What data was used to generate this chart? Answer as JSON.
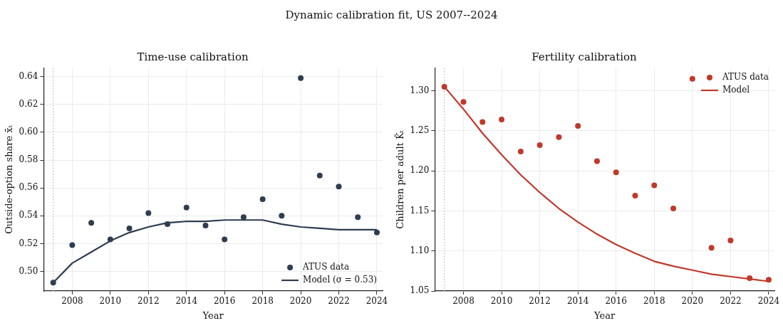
{
  "chart_data": [
    {
      "type": "line",
      "title": "Time-use calibration",
      "xlabel": "Year",
      "ylabel": "Outside-option share x̄ₜ",
      "annotations": [
        "Dynamic calibration fit, US 2007--2024"
      ],
      "x": [
        2007,
        2008,
        2009,
        2010,
        2011,
        2012,
        2013,
        2014,
        2015,
        2016,
        2017,
        2018,
        2019,
        2020,
        2021,
        2022,
        2023,
        2024
      ],
      "series": [
        {
          "name": "ATUS data",
          "type": "scatter",
          "marker": "circle",
          "color": "#2e3d4f",
          "values": [
            0.492,
            0.519,
            0.535,
            0.523,
            0.531,
            0.542,
            0.534,
            0.546,
            0.533,
            0.523,
            0.539,
            0.552,
            0.54,
            0.639,
            0.569,
            0.561,
            0.539,
            0.528
          ]
        },
        {
          "name": "Model (σ = 0.53)",
          "type": "line",
          "marker": "none",
          "color": "#2e3d4f",
          "values": [
            0.492,
            0.506,
            0.514,
            0.522,
            0.528,
            0.532,
            0.535,
            0.536,
            0.536,
            0.537,
            0.537,
            0.537,
            0.534,
            0.532,
            0.531,
            0.53,
            0.53,
            0.53
          ]
        }
      ],
      "xlim": [
        2006.5,
        2024.3
      ],
      "ylim": [
        0.486,
        0.646
      ],
      "xticks": [
        2008,
        2010,
        2012,
        2014,
        2016,
        2018,
        2020,
        2022,
        2024
      ],
      "yticks": [
        {
          "value": 0.5,
          "label": "0.50"
        },
        {
          "value": 0.52,
          "label": "0.52"
        },
        {
          "value": 0.54,
          "label": "0.54"
        },
        {
          "value": 0.56,
          "label": "0.56"
        },
        {
          "value": 0.58,
          "label": "0.58"
        },
        {
          "value": 0.6,
          "label": "0.60"
        },
        {
          "value": 0.62,
          "label": "0.62"
        },
        {
          "value": 0.64,
          "label": "0.64"
        }
      ],
      "ref_lines": [
        {
          "axis": "x",
          "value": 2007,
          "color": "#aaaaaa",
          "line_style": "dotted"
        }
      ],
      "grid": true,
      "legend": "bottom right"
    },
    {
      "type": "line",
      "title": "Fertility calibration",
      "xlabel": "Year",
      "ylabel": "Children per adult K̄ₜ",
      "x": [
        2007,
        2008,
        2009,
        2010,
        2011,
        2012,
        2013,
        2014,
        2015,
        2016,
        2017,
        2018,
        2019,
        2020,
        2021,
        2022,
        2023,
        2024
      ],
      "series": [
        {
          "name": "ATUS data",
          "type": "scatter",
          "marker": "circle",
          "color": "#c0392b",
          "values": [
            1.305,
            1.286,
            1.261,
            1.264,
            1.224,
            1.232,
            1.242,
            1.256,
            1.212,
            1.198,
            1.169,
            1.182,
            1.153,
            1.315,
            1.104,
            1.113,
            1.066,
            1.064
          ]
        },
        {
          "name": "Model",
          "type": "line",
          "marker": "none",
          "color": "#c0392b",
          "values": [
            1.305,
            1.277,
            1.247,
            1.22,
            1.195,
            1.173,
            1.153,
            1.136,
            1.121,
            1.108,
            1.097,
            1.087,
            1.081,
            1.076,
            1.071,
            1.068,
            1.065,
            1.062
          ]
        }
      ],
      "xlim": [
        2006.5,
        2024.3
      ],
      "ylim": [
        1.05,
        1.328
      ],
      "xticks": [
        2008,
        2010,
        2012,
        2014,
        2016,
        2018,
        2020,
        2022,
        2024
      ],
      "yticks": [
        {
          "value": 1.05,
          "label": "1.05"
        },
        {
          "value": 1.1,
          "label": "1.10"
        },
        {
          "value": 1.15,
          "label": "1.15"
        },
        {
          "value": 1.2,
          "label": "1.20"
        },
        {
          "value": 1.25,
          "label": "1.25"
        },
        {
          "value": 1.3,
          "label": "1.30"
        }
      ],
      "ref_lines": [
        {
          "axis": "x",
          "value": 2007,
          "color": "#aaaaaa",
          "line_style": "dotted"
        }
      ],
      "grid": true,
      "legend": "top right"
    }
  ]
}
